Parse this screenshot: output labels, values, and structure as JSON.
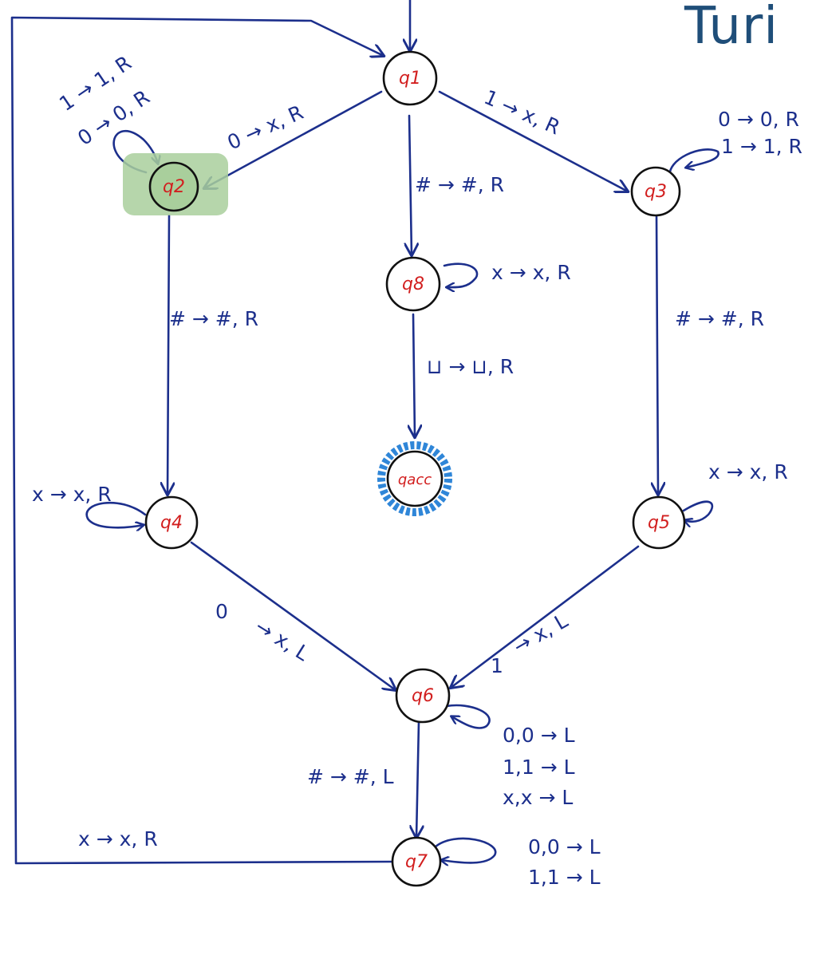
{
  "title": "Turi",
  "colors": {
    "ink": "#1c2f8c",
    "state_label": "#d21f1f",
    "highlight": "#a9cf9c",
    "accept_ring": "#2f86d8",
    "title": "#1f4e79"
  },
  "states": {
    "q1": "q1",
    "q2": "q2",
    "q3": "q3",
    "q4": "q4",
    "q5": "q5",
    "q6": "q6",
    "q7": "q7",
    "q8": "q8",
    "qacc": "qacc"
  },
  "transitions": {
    "q1_q2": "0 → x, R",
    "q1_q3": "1 → x, R",
    "q1_q8": "# → #, R",
    "q2_loop": [
      "1 → 1, R",
      "0 → 0, R"
    ],
    "q3_loop": [
      "0 → 0, R",
      "1 → 1, R"
    ],
    "q2_q4": "# → #, R",
    "q3_q5": "# → #, R",
    "q8_loop": "x → x, R",
    "q8_qacc": "⊔ → ⊔, R",
    "q4_loop": "x → x, R",
    "q5_loop": "x → x, R",
    "q4_q6_a": "0",
    "q4_q6_b": "→ x, L",
    "q5_q6_a": "1",
    "q5_q6_b": "→ x, L",
    "q6_loop": [
      "0,0 → L",
      "1,1 → L",
      "x,x → L"
    ],
    "q6_q7": "# → #, L",
    "q7_loop": [
      "0,0 → L",
      "1,1 → L"
    ],
    "q7_q1": "x → x, R"
  }
}
